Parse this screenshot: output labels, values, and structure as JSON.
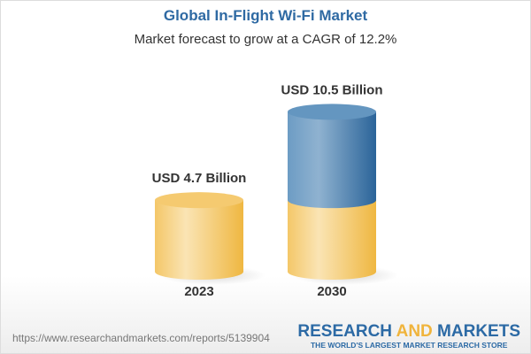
{
  "chart_data": {
    "type": "bar",
    "title": "Global In-Flight Wi-Fi Market",
    "subtitle": "Market forecast to grow at a CAGR of 12.2%",
    "categories": [
      "2023",
      "2030"
    ],
    "values": [
      4.7,
      10.5
    ],
    "data_labels": [
      "USD 4.7 Billion",
      "USD 10.5 Billion"
    ],
    "unit": "USD Billion",
    "colors": {
      "base": "#f2c35a",
      "growth": "#3f7fb0",
      "title": "#2f6aa3"
    }
  },
  "footer": {
    "url": "https://www.researchandmarkets.com/reports/5139904",
    "logo_research": "RESEARCH ",
    "logo_and": "AND",
    "logo_markets": " MARKETS",
    "logo_tagline": "THE WORLD'S LARGEST MARKET RESEARCH STORE"
  }
}
